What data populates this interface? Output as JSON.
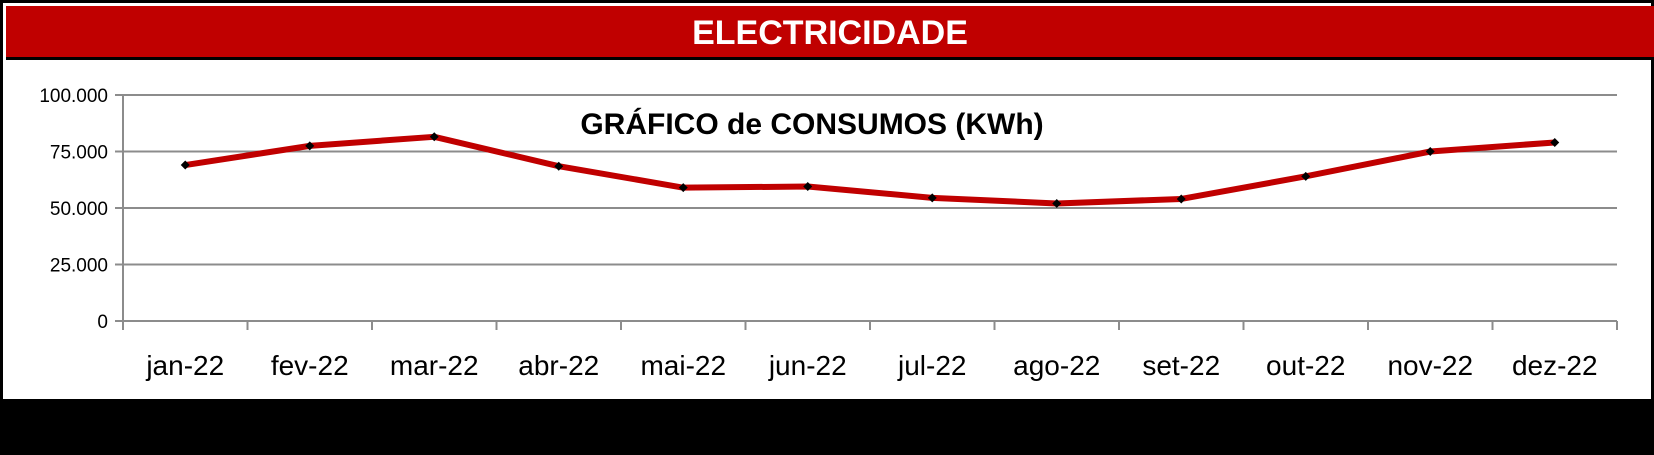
{
  "header": {
    "title": "ELECTRICIDADE"
  },
  "colors": {
    "header_bg": "#c00000",
    "line": "#c00000",
    "marker": "#000000",
    "grid": "#8c8c8c"
  },
  "chart_data": {
    "type": "line",
    "title": "GRÁFICO de CONSUMOS (KWh)",
    "xlabel": "",
    "ylabel": "",
    "categories": [
      "jan-22",
      "fev-22",
      "mar-22",
      "abr-22",
      "mai-22",
      "jun-22",
      "jul-22",
      "ago-22",
      "set-22",
      "out-22",
      "nov-22",
      "dez-22"
    ],
    "series": [
      {
        "values": [
          69000,
          77500,
          81500,
          68500,
          59000,
          59500,
          54500,
          52000,
          54000,
          64000,
          75000,
          79000
        ]
      }
    ],
    "ylim": [
      0,
      100000
    ],
    "yticks": [
      0,
      25000,
      50000,
      75000,
      100000
    ],
    "ytick_labels": [
      "0",
      "25.000",
      "50.000",
      "75.000",
      "100.000"
    ],
    "grid": true,
    "legend": "none"
  }
}
